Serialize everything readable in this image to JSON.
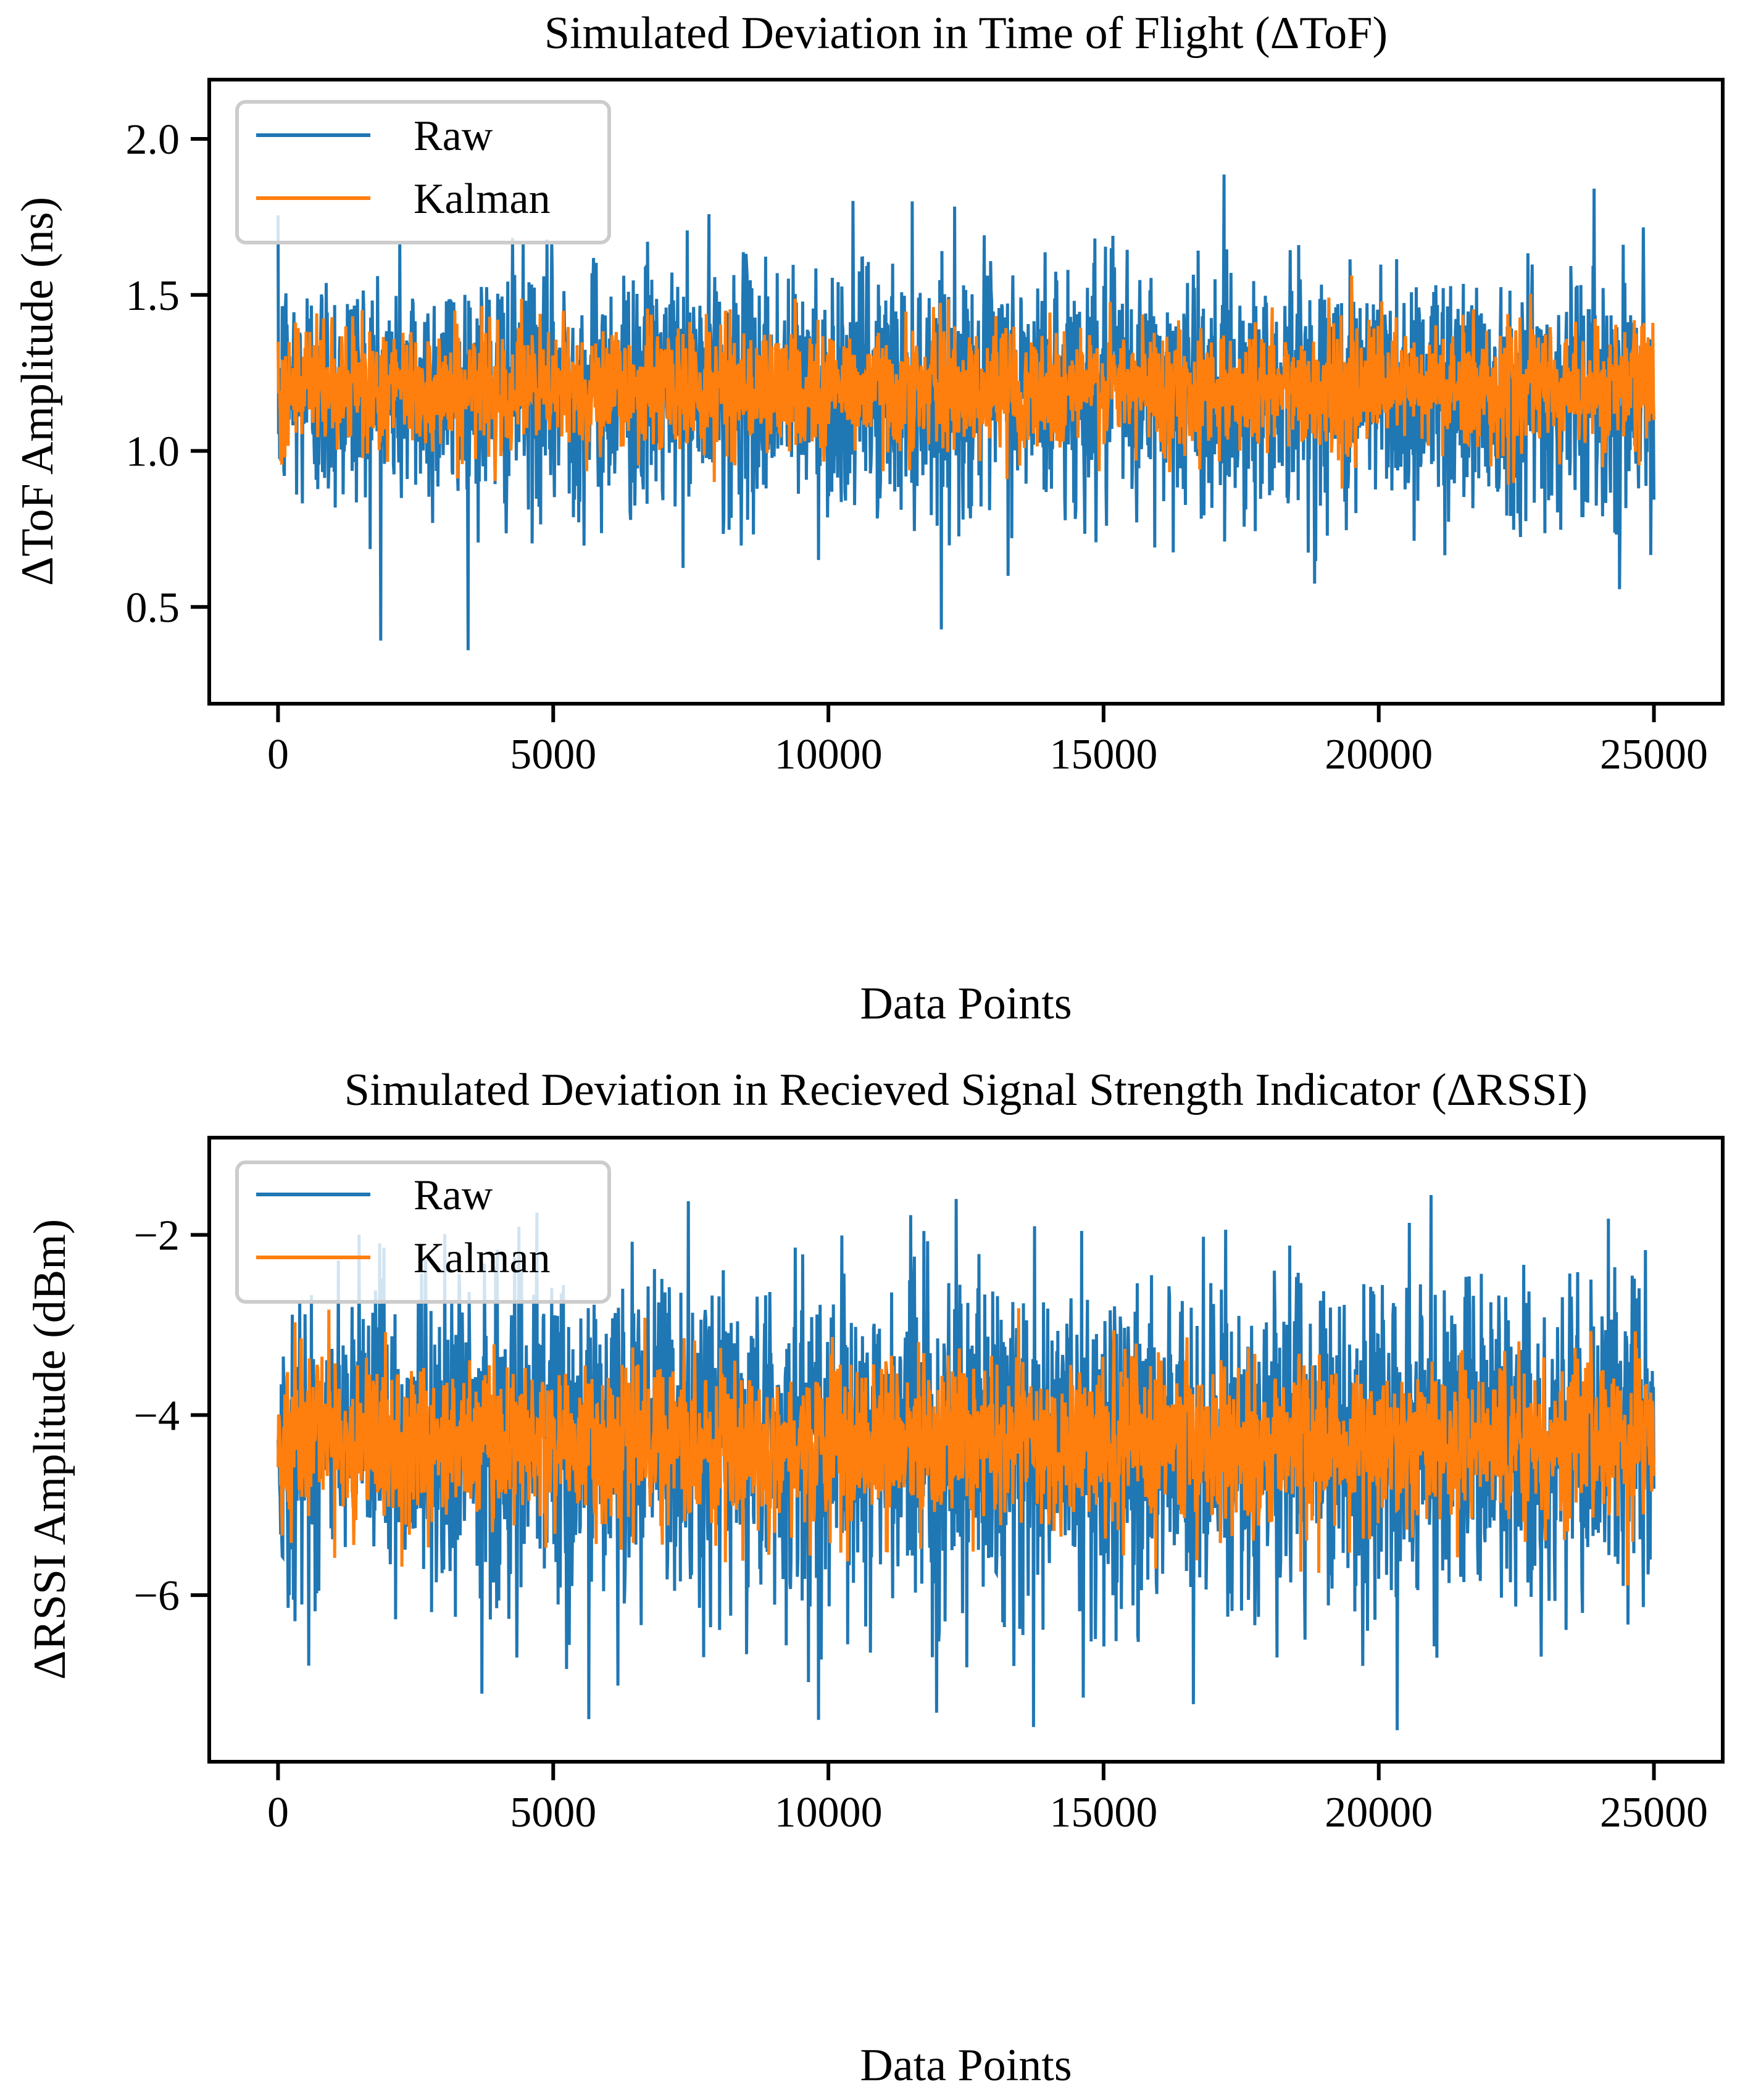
{
  "colors": {
    "raw": "#1f77b4",
    "kalman": "#ff7f0e",
    "axes": "#000000",
    "legend_border": "#cccccc"
  },
  "chart_data": [
    {
      "type": "line",
      "title": "Simulated Deviation in Time of Flight (ΔToF)",
      "xlabel": "Data Points",
      "ylabel": "ΔToF Amplitude (ns)",
      "xlim": [
        -1250,
        26250
      ],
      "ylim": [
        0.19,
        2.19
      ],
      "xticks": [
        0,
        5000,
        10000,
        15000,
        20000,
        25000
      ],
      "xtick_labels": [
        "0",
        "5000",
        "10000",
        "15000",
        "20000",
        "25000"
      ],
      "yticks": [
        0.5,
        1.0,
        1.5,
        2.0
      ],
      "ytick_labels": [
        "0.5",
        "1.0",
        "1.5",
        "2.0"
      ],
      "grid": false,
      "legend": {
        "placement": "top-left",
        "entries": [
          "Raw",
          "Kalman"
        ]
      },
      "series": [
        {
          "name": "Raw",
          "x_range": [
            0,
            25000
          ],
          "n_points": 25000,
          "approx_mean": 1.2,
          "approx_min": 0.28,
          "approx_max": 2.1,
          "approx_std": 0.2
        },
        {
          "name": "Kalman",
          "x_range": [
            0,
            25000
          ],
          "n_points": 25000,
          "approx_mean": 1.2,
          "approx_min": 0.72,
          "approx_max": 1.7,
          "approx_std": 0.1
        }
      ]
    },
    {
      "type": "line",
      "title": "Simulated Deviation in Recieved Signal Strength Indicator (ΔRSSI)",
      "xlabel": "Data Points",
      "ylabel": "ΔRSSI Amplitude (dBm)",
      "xlim": [
        -1250,
        26250
      ],
      "ylim": [
        -7.85,
        -0.92
      ],
      "xticks": [
        0,
        5000,
        10000,
        15000,
        20000,
        25000
      ],
      "xtick_labels": [
        "0",
        "5000",
        "10000",
        "15000",
        "20000",
        "25000"
      ],
      "yticks": [
        -6,
        -4,
        -2
      ],
      "ytick_labels": [
        "−6",
        "−4",
        "−2"
      ],
      "grid": false,
      "legend": {
        "placement": "top-left",
        "entries": [
          "Raw",
          "Kalman"
        ]
      },
      "series": [
        {
          "name": "Raw",
          "x_range": [
            0,
            25000
          ],
          "n_points": 25000,
          "approx_mean": -4.3,
          "approx_min": -7.5,
          "approx_max": -1.2,
          "approx_std": 0.9
        },
        {
          "name": "Kalman",
          "x_range": [
            0,
            25000
          ],
          "n_points": 25000,
          "approx_mean": -4.3,
          "approx_min": -6.0,
          "approx_max": -2.4,
          "approx_std": 0.45
        }
      ]
    }
  ]
}
